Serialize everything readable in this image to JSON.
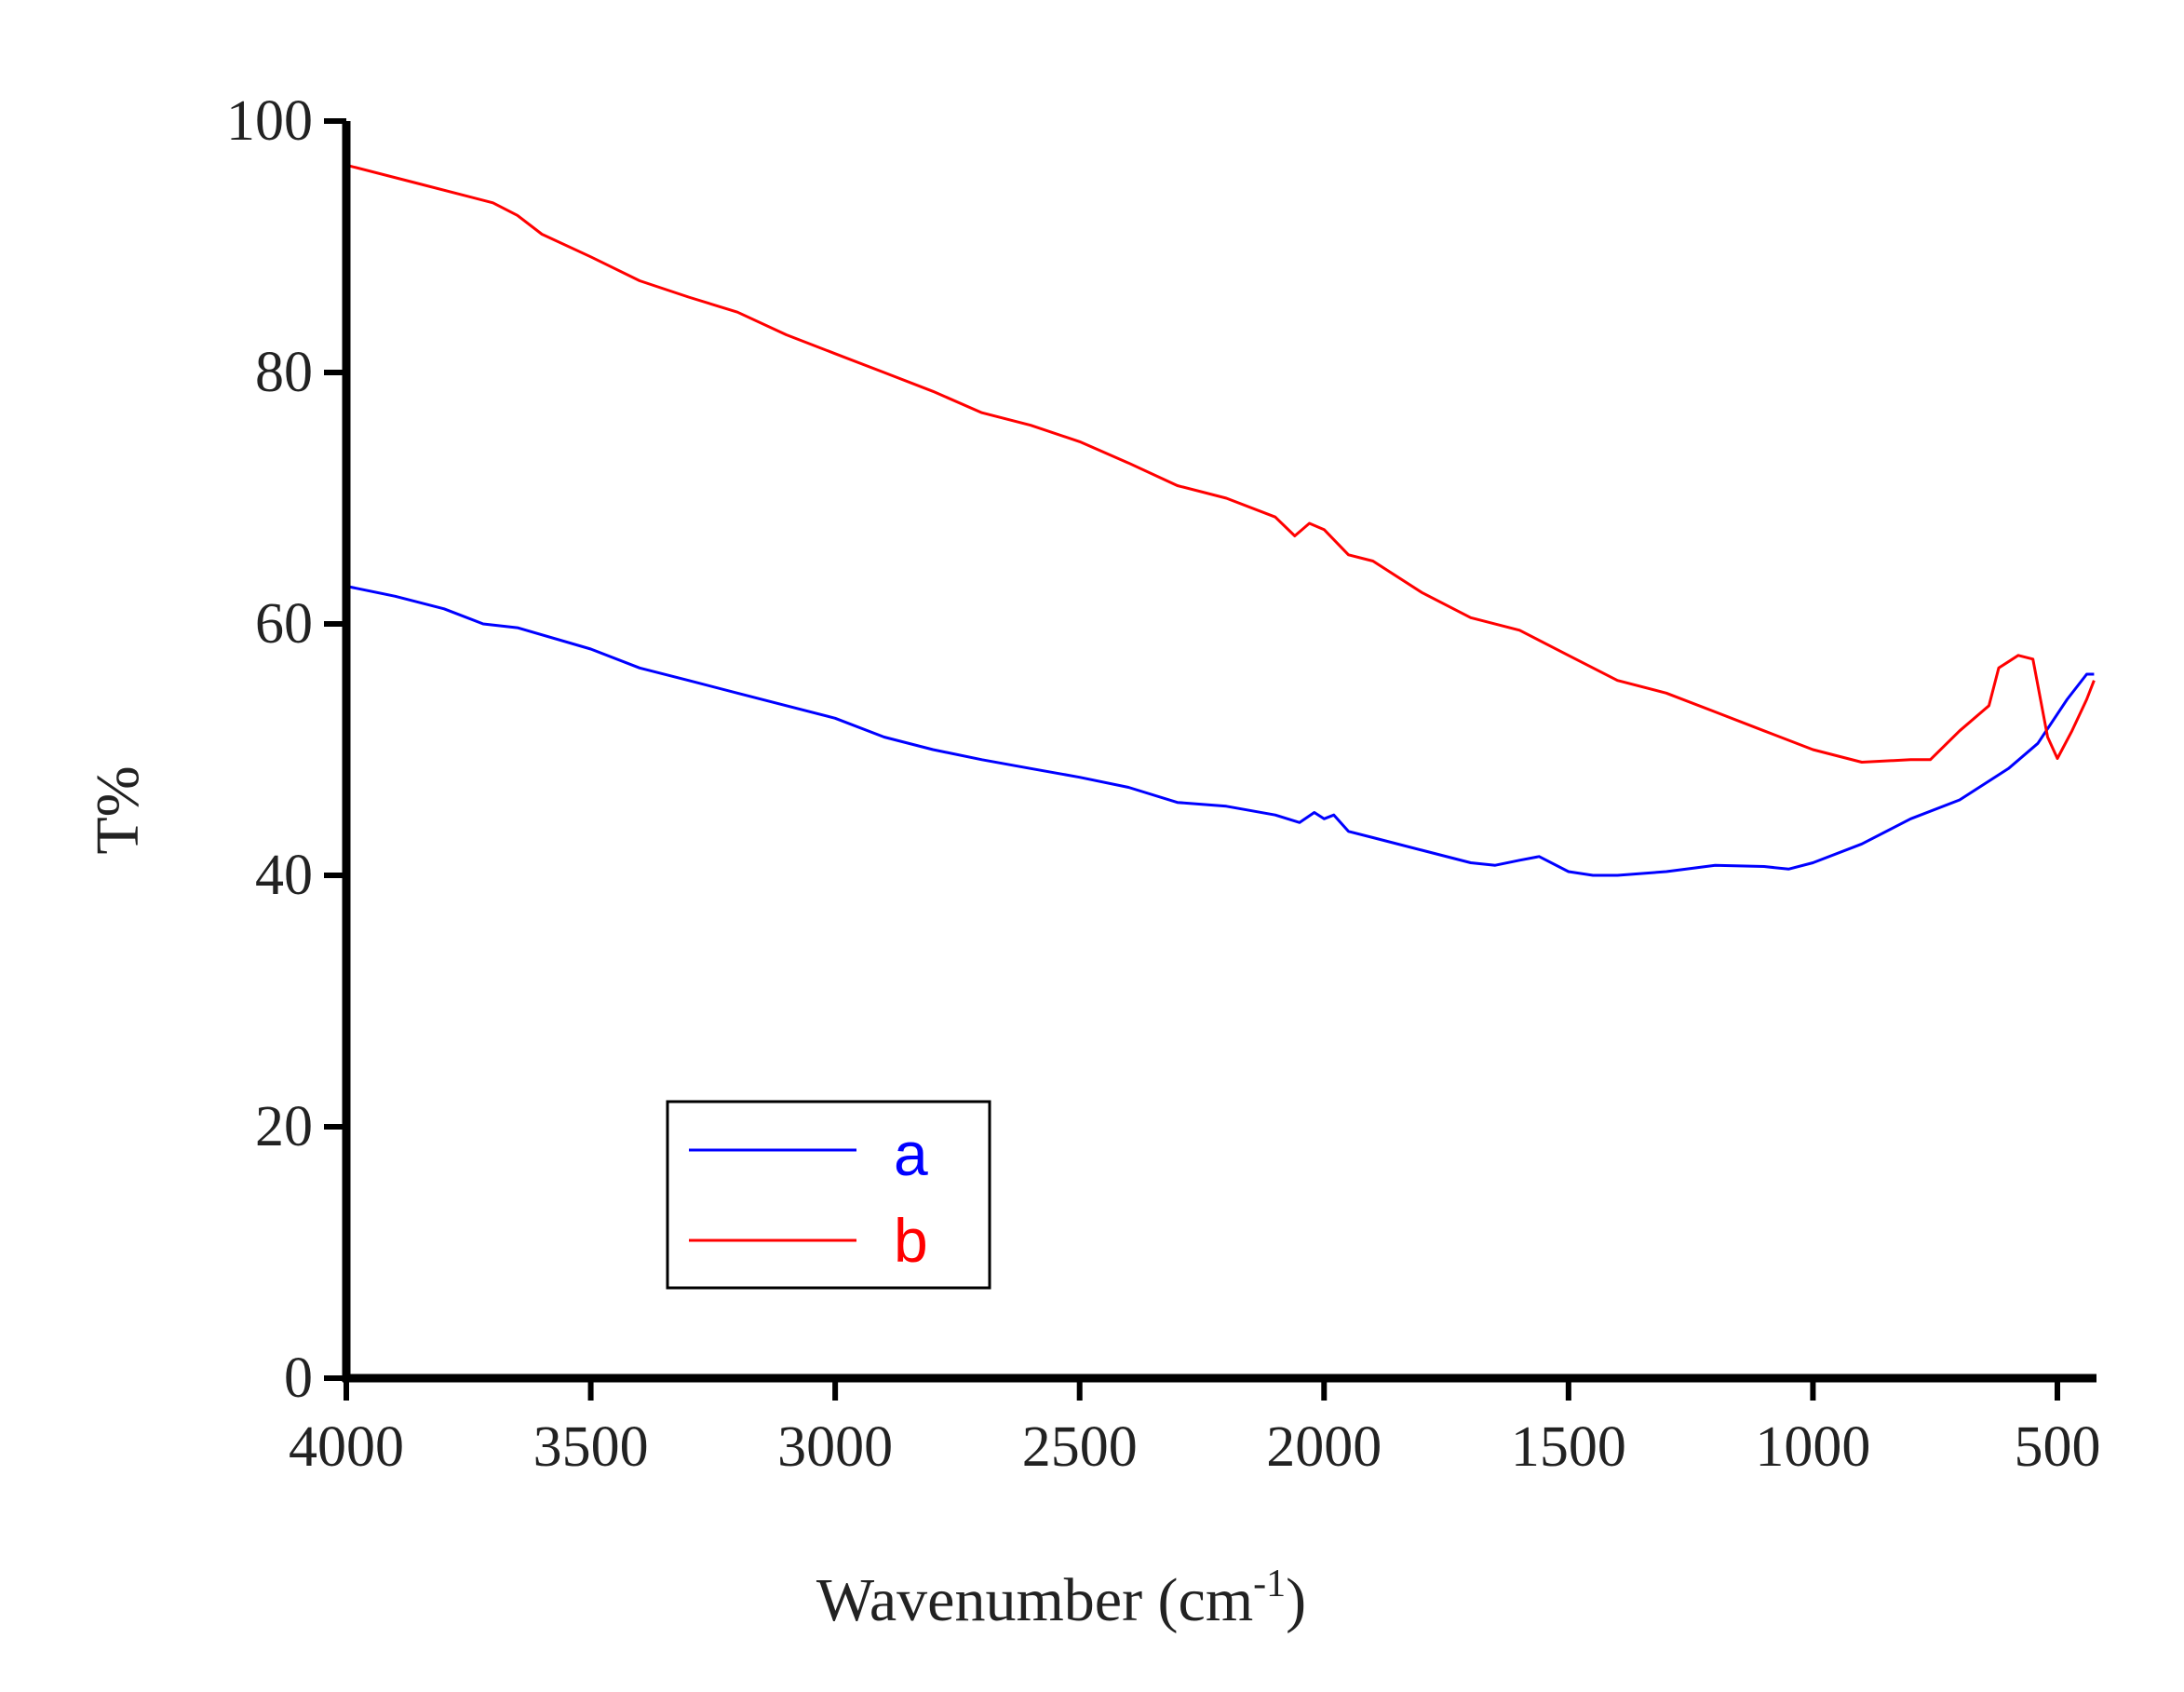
{
  "chart_data": {
    "type": "line",
    "title": "",
    "xlabel": "Wavenumber (cm",
    "xlabel_sup": "-1",
    "xlabel_close": ")",
    "ylabel": "T%",
    "xlim": [
      4000,
      420
    ],
    "ylim": [
      0,
      100
    ],
    "x_reversed": true,
    "grid": false,
    "legend_position": "lower-left",
    "xticks": [
      4000,
      3500,
      3000,
      2500,
      2000,
      1500,
      1000,
      500
    ],
    "xtick_labels": [
      "4000",
      "3500",
      "3000",
      "2500",
      "2000",
      "1500",
      "1000",
      "500"
    ],
    "yticks": [
      0,
      20,
      40,
      60,
      80,
      100
    ],
    "ytick_labels": [
      "0",
      "20",
      "40",
      "60",
      "80",
      "100"
    ],
    "series": [
      {
        "name": "a",
        "color": "#0000ff",
        "points": [
          [
            4000,
            63.0
          ],
          [
            3900,
            62.2
          ],
          [
            3800,
            61.2
          ],
          [
            3720,
            60.0
          ],
          [
            3650,
            59.7
          ],
          [
            3500,
            58.0
          ],
          [
            3400,
            56.5
          ],
          [
            3300,
            55.5
          ],
          [
            3200,
            54.5
          ],
          [
            3000,
            52.5
          ],
          [
            2900,
            51.0
          ],
          [
            2800,
            50.0
          ],
          [
            2700,
            49.2
          ],
          [
            2600,
            48.5
          ],
          [
            2500,
            47.8
          ],
          [
            2400,
            47.0
          ],
          [
            2300,
            45.8
          ],
          [
            2200,
            45.5
          ],
          [
            2100,
            44.8
          ],
          [
            2050,
            44.2
          ],
          [
            2020,
            45.0
          ],
          [
            2000,
            44.5
          ],
          [
            1980,
            44.8
          ],
          [
            1950,
            43.5
          ],
          [
            1900,
            43.0
          ],
          [
            1800,
            42.0
          ],
          [
            1700,
            41.0
          ],
          [
            1650,
            40.8
          ],
          [
            1600,
            41.2
          ],
          [
            1560,
            41.5
          ],
          [
            1500,
            40.3
          ],
          [
            1450,
            40.0
          ],
          [
            1400,
            40.0
          ],
          [
            1300,
            40.3
          ],
          [
            1200,
            40.8
          ],
          [
            1100,
            40.7
          ],
          [
            1050,
            40.5
          ],
          [
            1000,
            41.0
          ],
          [
            900,
            42.5
          ],
          [
            800,
            44.5
          ],
          [
            700,
            46.0
          ],
          [
            600,
            48.5
          ],
          [
            540,
            50.5
          ],
          [
            480,
            54.0
          ],
          [
            440,
            56.0
          ],
          [
            425,
            56.0
          ]
        ]
      },
      {
        "name": "b",
        "color": "#ff0000",
        "points": [
          [
            4000,
            96.5
          ],
          [
            3850,
            95.0
          ],
          [
            3700,
            93.5
          ],
          [
            3650,
            92.5
          ],
          [
            3600,
            91.0
          ],
          [
            3500,
            89.2
          ],
          [
            3400,
            87.3
          ],
          [
            3300,
            86.0
          ],
          [
            3200,
            84.8
          ],
          [
            3100,
            83.0
          ],
          [
            3000,
            81.5
          ],
          [
            2900,
            80.0
          ],
          [
            2800,
            78.5
          ],
          [
            2700,
            76.8
          ],
          [
            2600,
            75.8
          ],
          [
            2500,
            74.5
          ],
          [
            2400,
            72.8
          ],
          [
            2300,
            71.0
          ],
          [
            2200,
            70.0
          ],
          [
            2100,
            68.5
          ],
          [
            2060,
            67.0
          ],
          [
            2030,
            68.0
          ],
          [
            2000,
            67.5
          ],
          [
            1950,
            65.5
          ],
          [
            1900,
            65.0
          ],
          [
            1800,
            62.5
          ],
          [
            1700,
            60.5
          ],
          [
            1600,
            59.5
          ],
          [
            1500,
            57.5
          ],
          [
            1400,
            55.5
          ],
          [
            1300,
            54.5
          ],
          [
            1200,
            53.0
          ],
          [
            1100,
            51.5
          ],
          [
            1000,
            50.0
          ],
          [
            900,
            49.0
          ],
          [
            800,
            49.2
          ],
          [
            760,
            49.2
          ],
          [
            700,
            51.5
          ],
          [
            640,
            53.5
          ],
          [
            620,
            56.5
          ],
          [
            580,
            57.5
          ],
          [
            550,
            57.2
          ],
          [
            520,
            51.0
          ],
          [
            500,
            49.3
          ],
          [
            470,
            51.5
          ],
          [
            440,
            54.0
          ],
          [
            425,
            55.5
          ]
        ]
      }
    ]
  }
}
